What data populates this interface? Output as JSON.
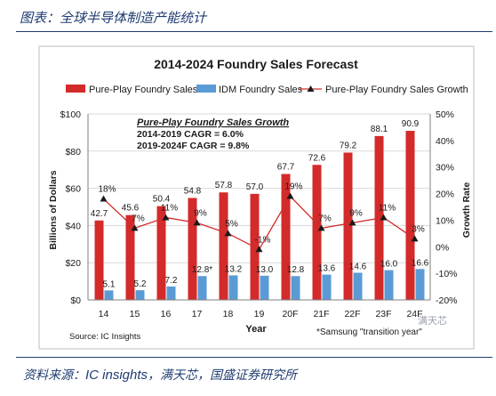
{
  "header": {
    "title": "图表：全球半导体制造产能统计"
  },
  "footer": {
    "source_prefix": "资料来源：",
    "source_brand": "IC insights",
    "source_suffix": "，满天芯，国盛证券研究所"
  },
  "watermark": "满天芯",
  "chart_data": {
    "type": "bar",
    "title": "2014-2024 Foundry Sales Forecast",
    "xlabel": "Year",
    "ylabel": "Billions of Dollars",
    "y2label": "Growth Rate",
    "categories": [
      "14",
      "15",
      "16",
      "17",
      "18",
      "19",
      "20F",
      "21F",
      "22F",
      "23F",
      "24F"
    ],
    "ylim": [
      0,
      100
    ],
    "y_ticks": [
      "$0",
      "$20",
      "$40",
      "$60",
      "$80",
      "$100"
    ],
    "y2lim": [
      -20,
      50
    ],
    "y2_ticks": [
      "-20%",
      "-10%",
      "0%",
      "10%",
      "20%",
      "30%",
      "40%",
      "50%"
    ],
    "legend_position": "top",
    "series": [
      {
        "name": "Pure-Play Foundry Sales",
        "color": "#d32a2a",
        "values": [
          42.7,
          45.6,
          50.4,
          54.8,
          57.8,
          57.0,
          67.7,
          72.6,
          79.2,
          88.1,
          90.9
        ],
        "labels": [
          "42.7",
          "45.6",
          "50.4",
          "54.8",
          "57.8",
          "57.0",
          "67.7",
          "72.6",
          "79.2",
          "88.1",
          "90.9"
        ]
      },
      {
        "name": "IDM Foundry Sales",
        "color": "#5b9bd5",
        "values": [
          5.1,
          5.2,
          7.2,
          12.8,
          13.2,
          13.0,
          12.8,
          13.6,
          14.6,
          16.0,
          16.6
        ],
        "labels": [
          "5.1",
          "5.2",
          "7.2",
          "12.8*",
          "13.2",
          "13.0",
          "12.8",
          "13.6",
          "14.6",
          "16.0",
          "16.6"
        ]
      },
      {
        "name": "Pure-Play Foundry Sales Growth",
        "color": "#d32a2a",
        "axis": "secondary",
        "values": [
          18,
          7,
          11,
          9,
          5,
          -1,
          19,
          7,
          9,
          11,
          3
        ],
        "labels": [
          "18%",
          "7%",
          "11%",
          "9%",
          "5%",
          "-1%",
          "19%",
          "7%",
          "9%",
          "11%",
          "3%"
        ]
      }
    ],
    "annotations": {
      "cagr_title": "Pure-Play Foundry Sales Growth",
      "cagr_line1": "2014-2019 CAGR = 6.0%",
      "cagr_line2": "2019-2024F CAGR = 9.8%",
      "source_note": "Source: IC Insights",
      "footnote": "*Samsung \"transition year\""
    }
  }
}
